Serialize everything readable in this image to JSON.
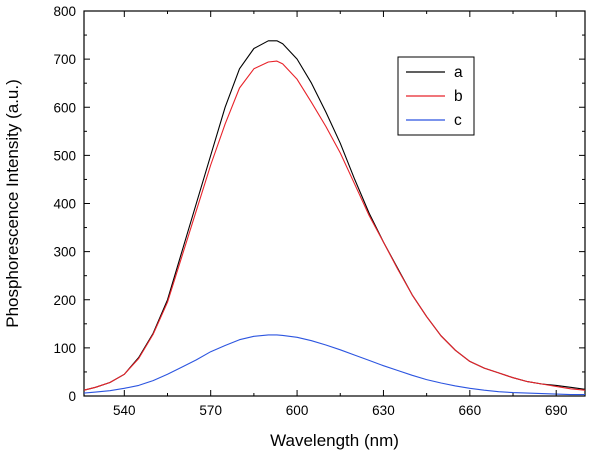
{
  "chart_data": {
    "type": "line",
    "title": "",
    "xlabel": "Wavelength (nm)",
    "ylabel": "Phosphorescence Intensity (a.u.)",
    "xlim": [
      526,
      700
    ],
    "ylim": [
      0,
      800
    ],
    "x_ticks": [
      540,
      570,
      600,
      630,
      660,
      690
    ],
    "y_ticks": [
      0,
      100,
      200,
      300,
      400,
      500,
      600,
      700,
      800
    ],
    "grid": false,
    "legend_position": "top-right",
    "series": [
      {
        "name": "a",
        "color": "#000000",
        "x": [
          526,
          530,
          535,
          540,
          545,
          550,
          555,
          560,
          565,
          570,
          575,
          580,
          585,
          590,
          593,
          595,
          600,
          605,
          610,
          615,
          620,
          625,
          630,
          635,
          640,
          645,
          650,
          655,
          660,
          665,
          670,
          675,
          680,
          685,
          690,
          695,
          700
        ],
        "y": [
          12,
          18,
          28,
          45,
          80,
          130,
          200,
          300,
          400,
          500,
          600,
          680,
          722,
          738,
          738,
          732,
          700,
          650,
          590,
          525,
          450,
          380,
          320,
          265,
          210,
          165,
          125,
          95,
          72,
          58,
          48,
          38,
          30,
          25,
          22,
          18,
          14
        ]
      },
      {
        "name": "b",
        "color": "#e8232a",
        "x": [
          526,
          530,
          535,
          540,
          545,
          550,
          555,
          560,
          565,
          570,
          575,
          580,
          585,
          590,
          593,
          595,
          600,
          605,
          610,
          615,
          620,
          625,
          630,
          635,
          640,
          645,
          650,
          655,
          660,
          665,
          670,
          675,
          680,
          685,
          690,
          695,
          700
        ],
        "y": [
          12,
          18,
          28,
          45,
          78,
          128,
          195,
          290,
          385,
          480,
          565,
          640,
          680,
          694,
          696,
          690,
          658,
          610,
          560,
          505,
          440,
          375,
          320,
          263,
          210,
          165,
          125,
          95,
          72,
          58,
          48,
          38,
          30,
          25,
          20,
          15,
          12
        ]
      },
      {
        "name": "c",
        "color": "#2c55e0",
        "x": [
          526,
          530,
          535,
          540,
          545,
          550,
          555,
          560,
          565,
          570,
          575,
          580,
          585,
          590,
          593,
          595,
          600,
          605,
          610,
          615,
          620,
          625,
          630,
          635,
          640,
          645,
          650,
          655,
          660,
          665,
          670,
          675,
          680,
          685,
          690,
          695,
          700
        ],
        "y": [
          6,
          8,
          11,
          16,
          22,
          32,
          45,
          60,
          75,
          92,
          105,
          117,
          124,
          127,
          127,
          126,
          122,
          115,
          106,
          96,
          85,
          74,
          63,
          53,
          43,
          34,
          27,
          21,
          16,
          12,
          9,
          7,
          6,
          5,
          4,
          3,
          3
        ]
      }
    ]
  }
}
